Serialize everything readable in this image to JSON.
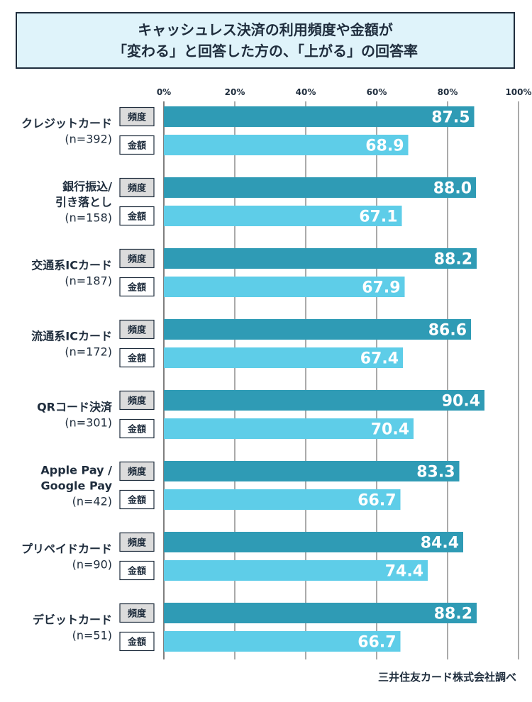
{
  "title_lines": [
    "キャッシュレス決済の利用頻度や金額が",
    "「変わる」と回答した方の、「上がる」の回答率"
  ],
  "source": "三井住友カード株式会社調べ",
  "colors": {
    "frequency_bar": "#2f9bb5",
    "amount_bar": "#5ecde8",
    "frequency_tag_bg": "#dcdcdc",
    "amount_tag_bg": "#ffffff",
    "grid": "#555555",
    "text": "#1f2d3d",
    "title_bg": "#dff3fa"
  },
  "chart_data": {
    "type": "bar",
    "orientation": "horizontal",
    "xlim": [
      0,
      100
    ],
    "x_ticks": [
      "0%",
      "20%",
      "40%",
      "60%",
      "80%",
      "100%"
    ],
    "x_tick_values": [
      0,
      20,
      40,
      60,
      80,
      100
    ],
    "grid": true,
    "categories": [
      {
        "label_lines": [
          "クレジットカード",
          "(n=392)"
        ]
      },
      {
        "label_lines": [
          "銀行振込/",
          "引き落とし",
          "(n=158)"
        ]
      },
      {
        "label_lines": [
          "交通系ICカード",
          "(n=187)"
        ]
      },
      {
        "label_lines": [
          "流通系ICカード",
          "(n=172)"
        ]
      },
      {
        "label_lines": [
          "QRコード決済",
          "(n=301)"
        ]
      },
      {
        "label_lines": [
          "Apple Pay /",
          "Google Pay",
          "(n=42)"
        ]
      },
      {
        "label_lines": [
          "プリペイドカード",
          "(n=90)"
        ]
      },
      {
        "label_lines": [
          "デビットカード",
          "(n=51)"
        ]
      }
    ],
    "series": [
      {
        "name": "頻度",
        "values": [
          87.5,
          88.0,
          88.2,
          86.6,
          90.4,
          83.3,
          84.4,
          88.2
        ],
        "value_labels": [
          "87.5",
          "88.0",
          "88.2",
          "86.6",
          "90.4",
          "83.3",
          "84.4",
          "88.2"
        ]
      },
      {
        "name": "金額",
        "values": [
          68.9,
          67.1,
          67.9,
          67.4,
          70.4,
          66.7,
          74.4,
          66.7
        ],
        "value_labels": [
          "68.9",
          "67.1",
          "67.9",
          "67.4",
          "70.4",
          "66.7",
          "74.4",
          "66.7"
        ]
      }
    ]
  }
}
